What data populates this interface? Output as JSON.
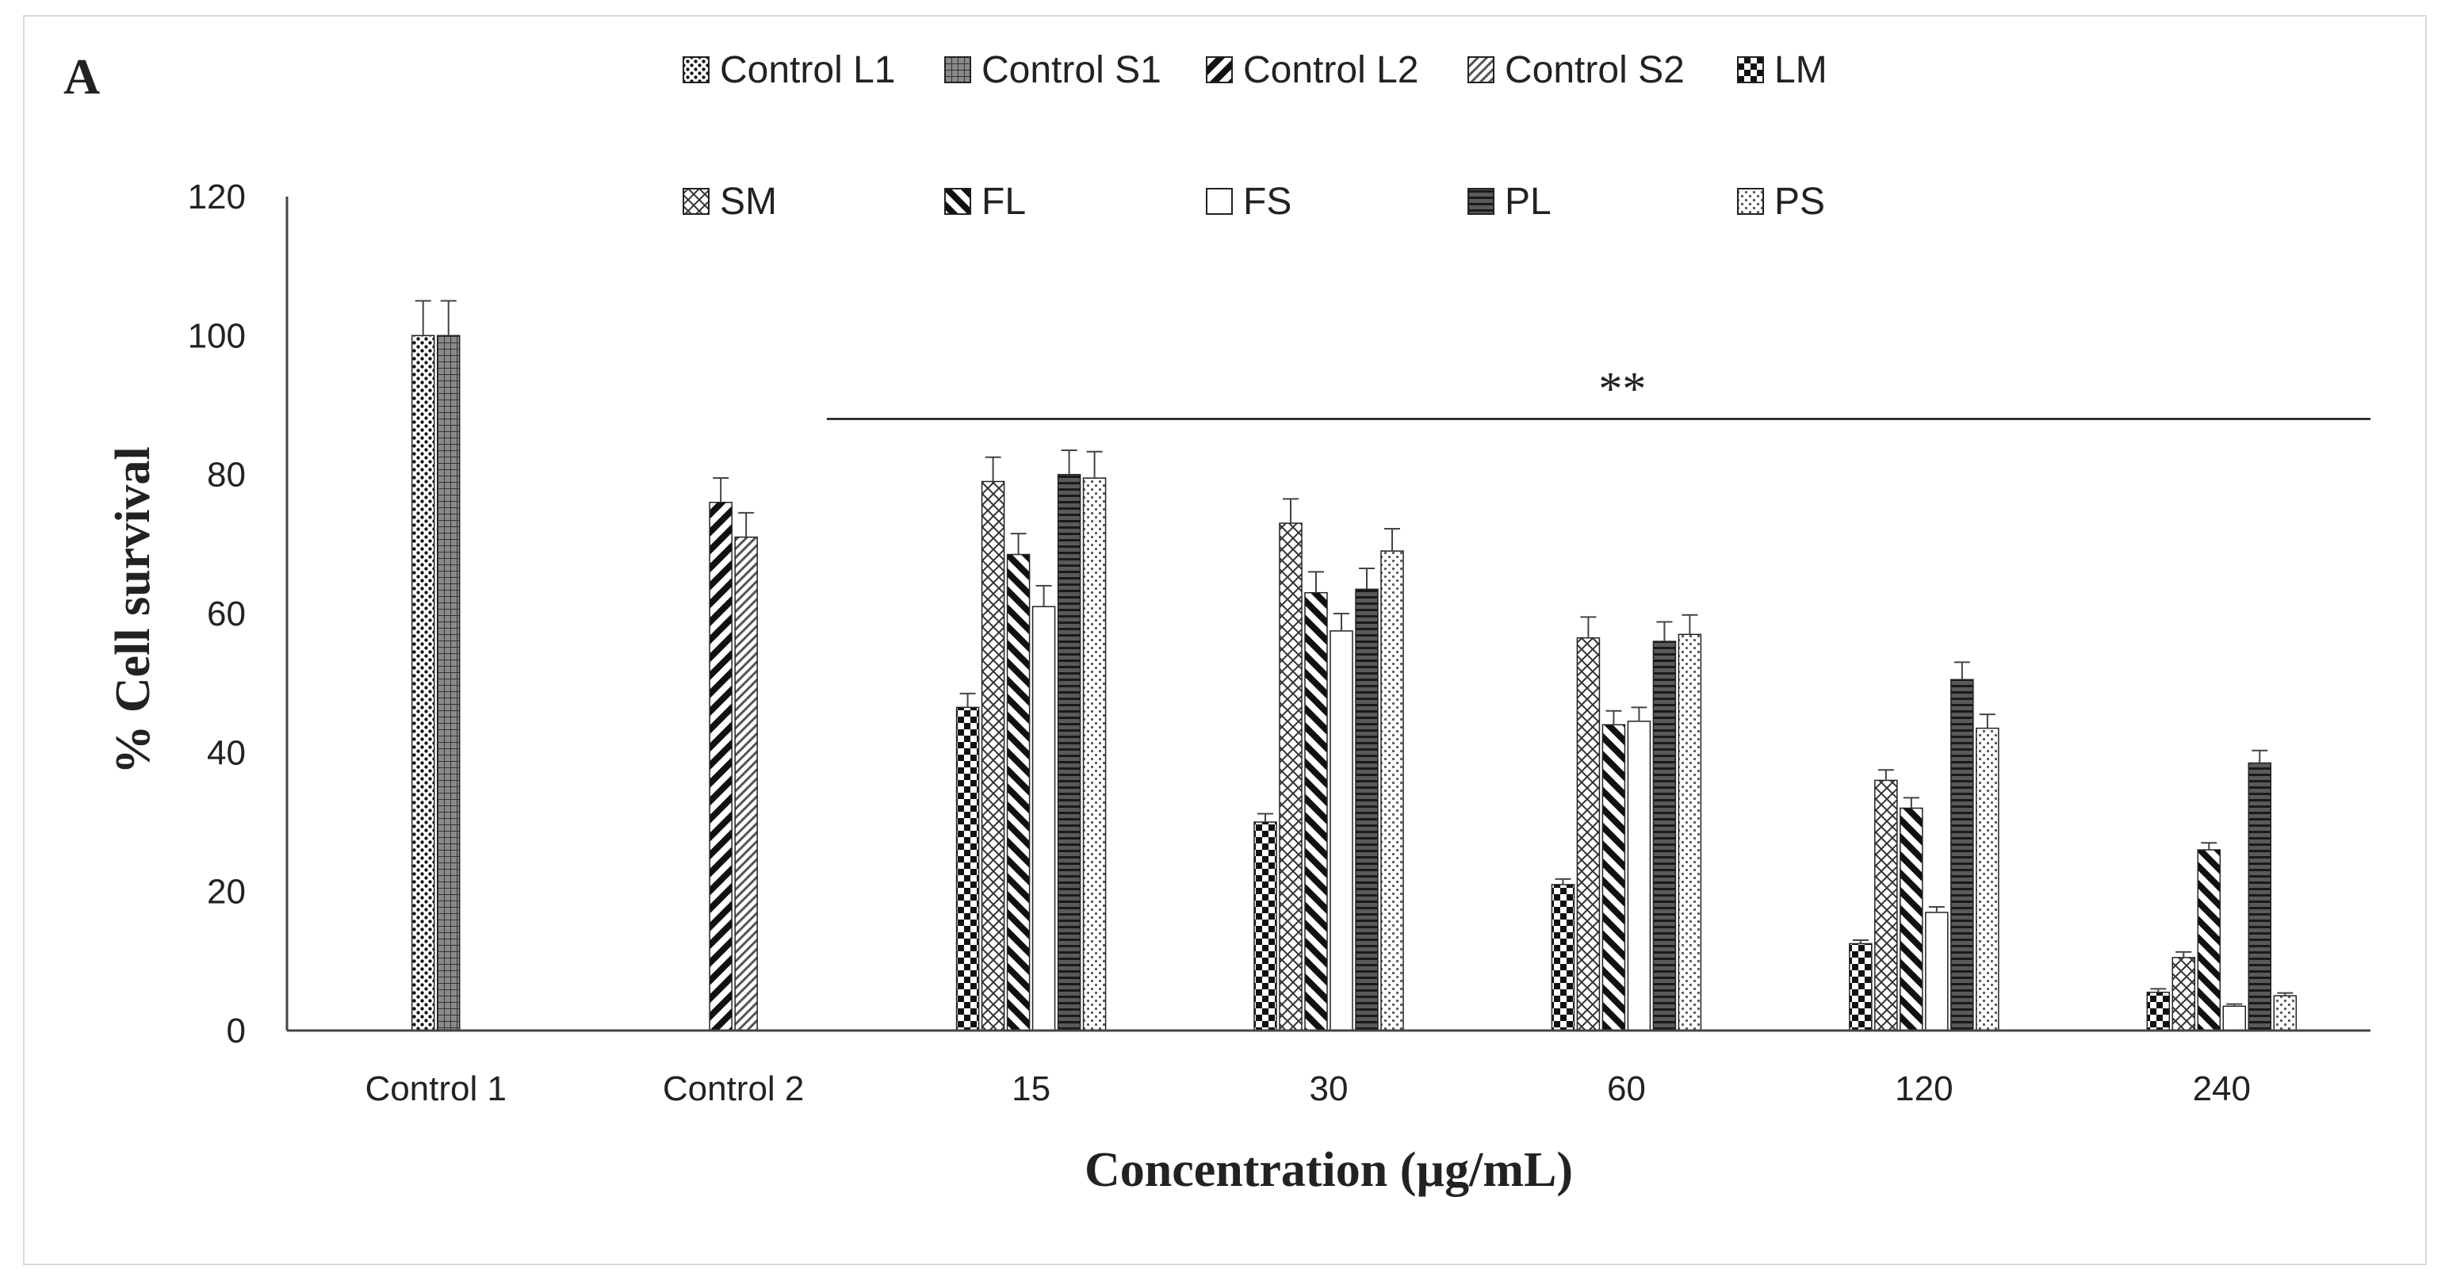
{
  "chart_data": {
    "type": "bar",
    "panel_label": "A",
    "title": "",
    "xlabel": "Concentration (µg/mL)",
    "ylabel": "% Cell survival",
    "ylim": [
      0,
      120
    ],
    "yticks": [
      0,
      20,
      40,
      60,
      80,
      100,
      120
    ],
    "grid": false,
    "legend_position": "top",
    "categories": [
      "Control 1",
      "Control 2",
      "15",
      "30",
      "60",
      "120",
      "240"
    ],
    "series": [
      {
        "name": "Control L1",
        "pattern": "dots-dense",
        "values": [
          100,
          null,
          null,
          null,
          null,
          null,
          null
        ],
        "errors": [
          5,
          null,
          null,
          null,
          null,
          null,
          null
        ]
      },
      {
        "name": "Control S1",
        "pattern": "grid-dark",
        "values": [
          100,
          null,
          null,
          null,
          null,
          null,
          null
        ],
        "errors": [
          5,
          null,
          null,
          null,
          null,
          null,
          null
        ]
      },
      {
        "name": "Control L2",
        "pattern": "diag-thick",
        "values": [
          null,
          76,
          null,
          null,
          null,
          null,
          null
        ],
        "errors": [
          null,
          3.5,
          null,
          null,
          null,
          null,
          null
        ]
      },
      {
        "name": "Control S2",
        "pattern": "diag-thin",
        "values": [
          null,
          71,
          null,
          null,
          null,
          null,
          null
        ],
        "errors": [
          null,
          3.5,
          null,
          null,
          null,
          null,
          null
        ]
      },
      {
        "name": "LM",
        "pattern": "checker",
        "values": [
          null,
          null,
          46.5,
          30,
          21,
          12.5,
          5.5
        ],
        "errors": [
          null,
          null,
          2,
          1.2,
          0.8,
          0.5,
          0.5
        ]
      },
      {
        "name": "SM",
        "pattern": "crosshatch",
        "values": [
          null,
          null,
          79,
          73,
          56.5,
          36,
          10.5
        ],
        "errors": [
          null,
          null,
          3.5,
          3.5,
          3,
          1.5,
          0.8
        ]
      },
      {
        "name": "FL",
        "pattern": "backdiag-thick",
        "values": [
          null,
          null,
          68.5,
          63,
          44,
          32,
          26
        ],
        "errors": [
          null,
          null,
          3,
          3,
          2,
          1.5,
          1
        ]
      },
      {
        "name": "FS",
        "pattern": "white",
        "values": [
          null,
          null,
          61,
          57.5,
          44.5,
          17,
          3.5
        ],
        "errors": [
          null,
          null,
          3,
          2.5,
          2,
          0.8,
          0.3
        ]
      },
      {
        "name": "PL",
        "pattern": "horizontal",
        "values": [
          null,
          null,
          80,
          63.5,
          56,
          50.5,
          38.5
        ],
        "errors": [
          null,
          null,
          3.5,
          3,
          2.8,
          2.5,
          1.8
        ]
      },
      {
        "name": "PS",
        "pattern": "dots-light",
        "values": [
          null,
          null,
          79.5,
          69,
          57,
          43.5,
          5
        ],
        "errors": [
          null,
          null,
          3.8,
          3.2,
          2.8,
          2,
          0.4
        ]
      }
    ],
    "annotation": {
      "text": "**",
      "y": 88,
      "from_category": 2,
      "to_category": 6
    }
  }
}
